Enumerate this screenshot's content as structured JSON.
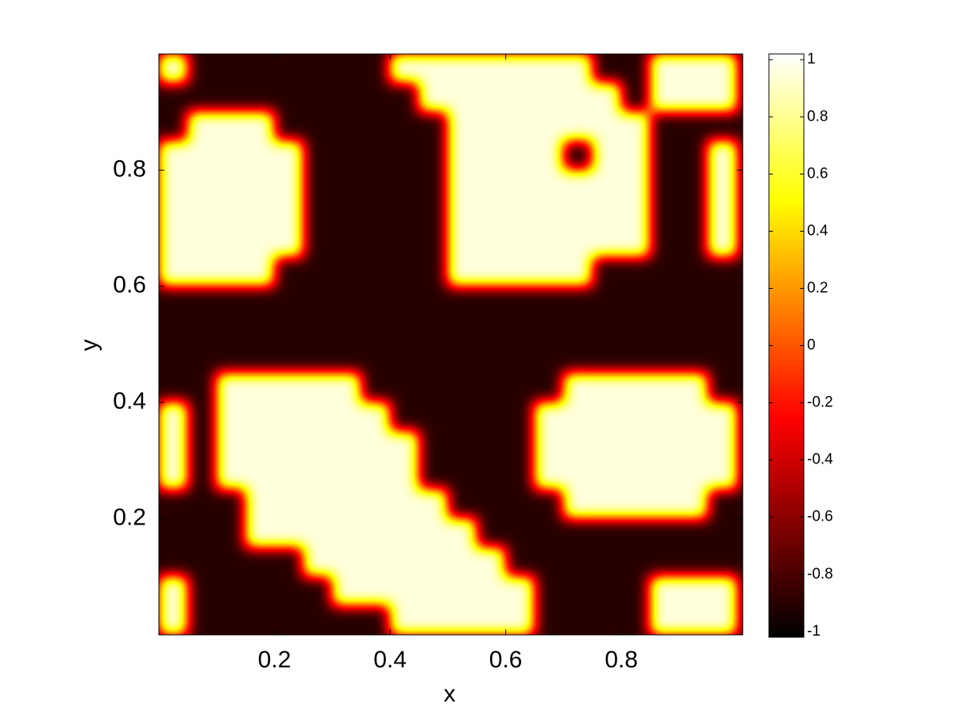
{
  "chart_data": {
    "type": "heatmap",
    "x_label": "x",
    "y_label": "y",
    "xlim": [
      0,
      1.01
    ],
    "ylim": [
      0,
      1
    ],
    "xticks": [
      0.2,
      0.4,
      0.6,
      0.8
    ],
    "yticks": [
      0.2,
      0.4,
      0.6,
      0.8
    ],
    "clim": [
      -1.02,
      1.02
    ],
    "cticks": [
      -1,
      -0.8,
      -0.6,
      -0.4,
      -0.2,
      0,
      0.2,
      0.4,
      0.6,
      0.8,
      1
    ],
    "colormap": "hot",
    "z": [
      [
        0.95,
        -0.9,
        -0.9,
        -0.9,
        -0.9,
        -0.9,
        -0.9,
        -0.9,
        0.95,
        0.95,
        0.95,
        0.95,
        0.95,
        0.95,
        0.95,
        -0.9,
        -0.9,
        0.95,
        0.95,
        0.95
      ],
      [
        -0.9,
        -0.9,
        -0.9,
        -0.9,
        -0.9,
        -0.9,
        -0.9,
        -0.9,
        -0.9,
        0.95,
        0.95,
        0.95,
        0.95,
        0.95,
        0.95,
        0.95,
        -0.9,
        0.95,
        0.95,
        0.95
      ],
      [
        -0.9,
        0.95,
        0.95,
        0.95,
        -0.9,
        -0.9,
        -0.9,
        -0.9,
        -0.9,
        -0.9,
        0.95,
        0.95,
        0.95,
        0.95,
        0.95,
        0.95,
        0.95,
        -0.9,
        -0.9,
        -0.9
      ],
      [
        0.95,
        0.95,
        0.95,
        0.95,
        0.95,
        -0.9,
        -0.9,
        -0.9,
        -0.9,
        -0.9,
        0.95,
        0.95,
        0.95,
        0.95,
        -0.9,
        0.95,
        0.95,
        -0.9,
        -0.9,
        0.95
      ],
      [
        0.95,
        0.95,
        0.95,
        0.95,
        0.95,
        -0.9,
        -0.9,
        -0.9,
        -0.9,
        -0.9,
        0.95,
        0.95,
        0.95,
        0.95,
        0.95,
        0.95,
        0.95,
        -0.9,
        -0.9,
        0.95
      ],
      [
        0.95,
        0.95,
        0.95,
        0.95,
        0.95,
        -0.9,
        -0.9,
        -0.9,
        -0.9,
        -0.9,
        0.95,
        0.95,
        0.95,
        0.95,
        0.95,
        0.95,
        0.95,
        -0.9,
        -0.9,
        0.95
      ],
      [
        0.95,
        0.95,
        0.95,
        0.95,
        0.95,
        -0.9,
        -0.9,
        -0.9,
        -0.9,
        -0.9,
        0.95,
        0.95,
        0.95,
        0.95,
        0.95,
        0.95,
        0.95,
        -0.9,
        -0.9,
        0.95
      ],
      [
        0.95,
        0.95,
        0.95,
        0.95,
        -0.9,
        -0.9,
        -0.9,
        -0.9,
        -0.9,
        -0.9,
        0.95,
        0.95,
        0.95,
        0.95,
        0.95,
        -0.9,
        -0.9,
        -0.9,
        -0.9,
        -0.9
      ],
      [
        -0.9,
        -0.9,
        -0.9,
        -0.9,
        -0.9,
        -0.9,
        -0.9,
        -0.9,
        -0.9,
        -0.9,
        -0.9,
        -0.9,
        -0.9,
        -0.9,
        -0.9,
        -0.9,
        -0.9,
        -0.9,
        -0.9,
        -0.9
      ],
      [
        -0.9,
        -0.9,
        -0.9,
        -0.9,
        -0.9,
        -0.9,
        -0.9,
        -0.9,
        -0.9,
        -0.9,
        -0.9,
        -0.9,
        -0.9,
        -0.9,
        -0.9,
        -0.9,
        -0.9,
        -0.9,
        -0.9,
        -0.9
      ],
      [
        -0.9,
        -0.9,
        -0.9,
        -0.9,
        -0.9,
        -0.9,
        -0.9,
        -0.9,
        -0.9,
        -0.9,
        -0.9,
        -0.9,
        -0.9,
        -0.9,
        -0.9,
        -0.9,
        -0.9,
        -0.9,
        -0.9,
        -0.9
      ],
      [
        -0.9,
        -0.9,
        0.95,
        0.95,
        0.95,
        0.95,
        0.95,
        -0.9,
        -0.9,
        -0.9,
        -0.9,
        -0.9,
        -0.9,
        -0.9,
        0.95,
        0.95,
        0.95,
        0.95,
        0.95,
        -0.9
      ],
      [
        0.95,
        -0.9,
        0.95,
        0.95,
        0.95,
        0.95,
        0.95,
        0.95,
        -0.9,
        -0.9,
        -0.9,
        -0.9,
        -0.9,
        0.95,
        0.95,
        0.95,
        0.95,
        0.95,
        0.95,
        0.95
      ],
      [
        0.95,
        -0.9,
        0.95,
        0.95,
        0.95,
        0.95,
        0.95,
        0.95,
        0.95,
        -0.9,
        -0.9,
        -0.9,
        -0.9,
        0.95,
        0.95,
        0.95,
        0.95,
        0.95,
        0.95,
        0.95
      ],
      [
        0.95,
        -0.9,
        0.95,
        0.95,
        0.95,
        0.95,
        0.95,
        0.95,
        0.95,
        -0.9,
        -0.9,
        -0.9,
        -0.9,
        0.95,
        0.95,
        0.95,
        0.95,
        0.95,
        0.95,
        0.95
      ],
      [
        -0.9,
        -0.9,
        -0.9,
        0.95,
        0.95,
        0.95,
        0.95,
        0.95,
        0.95,
        0.95,
        -0.9,
        -0.9,
        -0.9,
        -0.9,
        0.95,
        0.95,
        0.95,
        0.95,
        0.95,
        -0.9
      ],
      [
        -0.9,
        -0.9,
        -0.9,
        0.95,
        0.95,
        0.95,
        0.95,
        0.95,
        0.95,
        0.95,
        0.95,
        -0.9,
        -0.9,
        -0.9,
        -0.9,
        -0.9,
        -0.9,
        -0.9,
        -0.9,
        -0.9
      ],
      [
        -0.9,
        -0.9,
        -0.9,
        -0.9,
        -0.9,
        0.95,
        0.95,
        0.95,
        0.95,
        0.95,
        0.95,
        0.95,
        -0.9,
        -0.9,
        -0.9,
        -0.9,
        -0.9,
        -0.9,
        -0.9,
        -0.9
      ],
      [
        0.95,
        -0.9,
        -0.9,
        -0.9,
        -0.9,
        -0.9,
        0.95,
        0.95,
        0.95,
        0.95,
        0.95,
        0.95,
        0.95,
        -0.9,
        -0.9,
        -0.9,
        -0.9,
        0.95,
        0.95,
        0.95
      ],
      [
        0.95,
        -0.9,
        -0.9,
        -0.9,
        -0.9,
        -0.9,
        -0.9,
        -0.9,
        0.95,
        0.95,
        0.95,
        0.95,
        0.95,
        -0.9,
        -0.9,
        -0.9,
        -0.9,
        0.95,
        0.95,
        0.95
      ]
    ]
  }
}
